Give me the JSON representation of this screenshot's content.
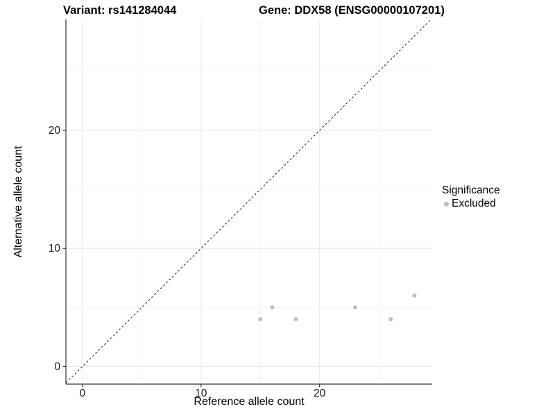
{
  "chart_data": {
    "type": "scatter",
    "titles": {
      "left": "Variant: rs141284044",
      "right": "Gene: DDX58 (ENSG00000107201)"
    },
    "xlabel": "Reference allele count",
    "ylabel": "Alternative allele count",
    "xlim": [
      -1.4,
      29.5
    ],
    "ylim": [
      -1.5,
      29.4
    ],
    "x_major_ticks": [
      0,
      10,
      20
    ],
    "x_minor_ticks": [
      5,
      15,
      25
    ],
    "y_major_ticks": [
      0,
      10,
      20
    ],
    "y_minor_ticks": [
      5,
      15,
      25
    ],
    "grid": true,
    "identity_line": {
      "slope": 1,
      "intercept": 0,
      "style": "dashed",
      "color": "#1a1a1a"
    },
    "series": [
      {
        "name": "Excluded",
        "color": "#bebebe",
        "points": [
          {
            "x": 15,
            "y": 4
          },
          {
            "x": 16,
            "y": 5
          },
          {
            "x": 18,
            "y": 4
          },
          {
            "x": 23,
            "y": 5
          },
          {
            "x": 26,
            "y": 4
          },
          {
            "x": 28,
            "y": 6
          }
        ]
      }
    ],
    "legend": {
      "title": "Significance",
      "position": "right",
      "items": [
        {
          "label": "Excluded",
          "color": "#bebebe"
        }
      ]
    }
  }
}
